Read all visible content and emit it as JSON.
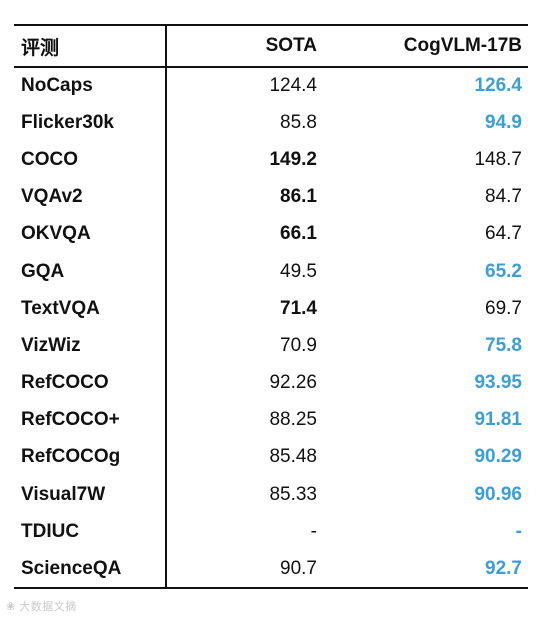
{
  "header": {
    "col_name": "评测",
    "col_sota": "SOTA",
    "col_cog": "CogVLM-17B"
  },
  "rows": [
    {
      "name": "NoCaps",
      "sota": "124.4",
      "cog": "126.4",
      "sota_bold": false,
      "cog_best": true
    },
    {
      "name": "Flicker30k",
      "sota": "85.8",
      "cog": "94.9",
      "sota_bold": false,
      "cog_best": true
    },
    {
      "name": "COCO",
      "sota": "149.2",
      "cog": "148.7",
      "sota_bold": true,
      "cog_best": false
    },
    {
      "name": "VQAv2",
      "sota": "86.1",
      "cog": "84.7",
      "sota_bold": true,
      "cog_best": false
    },
    {
      "name": "OKVQA",
      "sota": "66.1",
      "cog": "64.7",
      "sota_bold": true,
      "cog_best": false
    },
    {
      "name": "GQA",
      "sota": "49.5",
      "cog": "65.2",
      "sota_bold": false,
      "cog_best": true
    },
    {
      "name": "TextVQA",
      "sota": "71.4",
      "cog": "69.7",
      "sota_bold": true,
      "cog_best": false
    },
    {
      "name": "VizWiz",
      "sota": "70.9",
      "cog": "75.8",
      "sota_bold": false,
      "cog_best": true
    },
    {
      "name": "RefCOCO",
      "sota": "92.26",
      "cog": "93.95",
      "sota_bold": false,
      "cog_best": true
    },
    {
      "name": "RefCOCO+",
      "sota": "88.25",
      "cog": "91.81",
      "sota_bold": false,
      "cog_best": true
    },
    {
      "name": "RefCOCOg",
      "sota": "85.48",
      "cog": "90.29",
      "sota_bold": false,
      "cog_best": true
    },
    {
      "name": "Visual7W",
      "sota": "85.33",
      "cog": "90.96",
      "sota_bold": false,
      "cog_best": true
    },
    {
      "name": "TDIUC",
      "sota": "-",
      "cog": "-",
      "sota_bold": false,
      "cog_best": true
    },
    {
      "name": "ScienceQA",
      "sota": "90.7",
      "cog": "92.7",
      "sota_bold": false,
      "cog_best": true
    }
  ],
  "colors": {
    "highlight": "#3a9fd8",
    "text": "#111111",
    "rule": "#111111",
    "watermark": "#c9c9c9"
  },
  "watermark": {
    "text": "大数据文摘"
  }
}
